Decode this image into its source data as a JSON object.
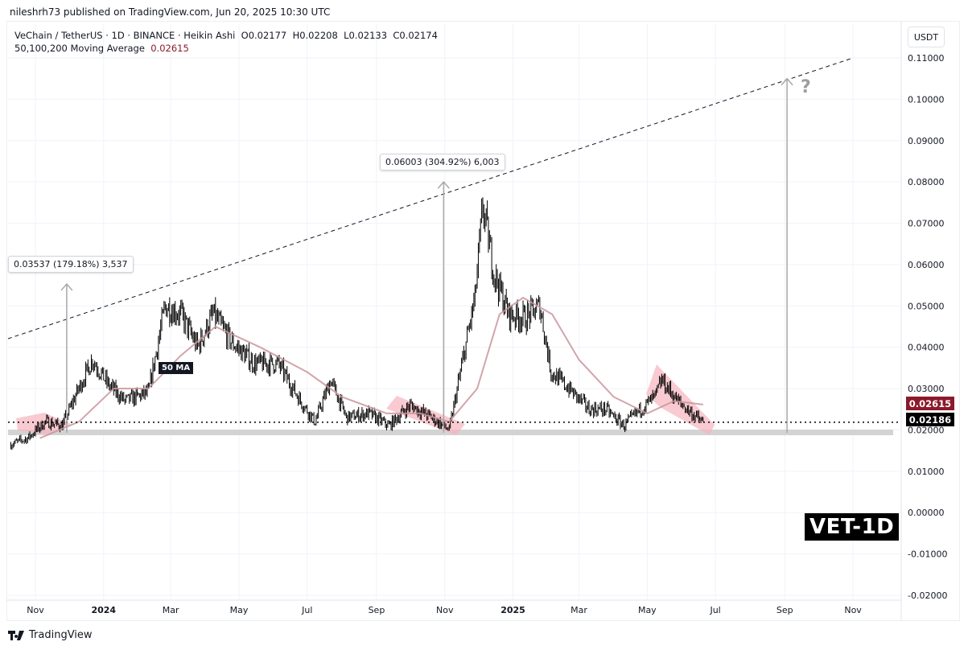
{
  "header": {
    "published": "nileshrh73 published on TradingView.com, Jun 20, 2025 10:30 UTC"
  },
  "legend": {
    "symbol": "VeChain / TetherUS · 1D · BINANCE · Heikin Ashi",
    "open": "O0.02177",
    "high": "H0.02208",
    "low": "L0.02133",
    "close": "C0.02174",
    "ma_label": "50,100,200 Moving Average",
    "ma_value": "0.02615"
  },
  "price_axis": {
    "currency": "USDT",
    "ma_tag": "0.02615",
    "price_tag": "0.02186",
    "ma_tag_color": "#8b1a2b",
    "price_tag_color": "#000000"
  },
  "annotations": {
    "left_measure": "0.03537 (179.18%) 3,537",
    "mid_measure": "0.06003 (304.92%) 6,003",
    "question": "?",
    "ma_label": "50 MA",
    "ticker_badge": "VET-1D"
  },
  "footer": {
    "brand": "TradingView"
  },
  "colors": {
    "ma": "#c9959b",
    "pattern": "#f7b3bd",
    "support": "#d3d3d3",
    "candle": "#000000"
  },
  "chart_data": {
    "type": "candlestick",
    "ylim": [
      -0.025,
      0.115
    ],
    "yticks": [
      "0.11000",
      "0.10000",
      "0.09000",
      "0.08000",
      "0.07000",
      "0.06000",
      "0.05000",
      "0.04000",
      "0.03000",
      "0.02000",
      "0.01000",
      "0.00000",
      "-0.01000",
      "-0.02000"
    ],
    "ytick_values": [
      0.11,
      0.1,
      0.09,
      0.08,
      0.07,
      0.06,
      0.05,
      0.04,
      0.03,
      0.02,
      0.01,
      0.0,
      -0.01,
      -0.02
    ],
    "xticks": [
      {
        "label": "Nov",
        "date": "2023-11-01"
      },
      {
        "label": "2024",
        "date": "2024-01-01",
        "bold": true
      },
      {
        "label": "Mar",
        "date": "2024-03-01"
      },
      {
        "label": "May",
        "date": "2024-05-01"
      },
      {
        "label": "Jul",
        "date": "2024-07-01"
      },
      {
        "label": "Sep",
        "date": "2024-09-01"
      },
      {
        "label": "Nov",
        "date": "2024-11-01"
      },
      {
        "label": "2025",
        "date": "2025-01-01",
        "bold": true
      },
      {
        "label": "Mar",
        "date": "2025-03-01"
      },
      {
        "label": "May",
        "date": "2025-05-01"
      },
      {
        "label": "Jul",
        "date": "2025-07-01"
      },
      {
        "label": "Sep",
        "date": "2025-09-01"
      },
      {
        "label": "Nov",
        "date": "2025-11-01"
      }
    ],
    "price_path": [
      [
        "2023-10-10",
        0.0165
      ],
      [
        "2023-10-25",
        0.018
      ],
      [
        "2023-11-10",
        0.022
      ],
      [
        "2023-11-25",
        0.021
      ],
      [
        "2023-12-08",
        0.029
      ],
      [
        "2023-12-22",
        0.037
      ],
      [
        "2024-01-05",
        0.031
      ],
      [
        "2024-01-20",
        0.027
      ],
      [
        "2024-02-10",
        0.029
      ],
      [
        "2024-02-25",
        0.05
      ],
      [
        "2024-03-10",
        0.048
      ],
      [
        "2024-03-25",
        0.04
      ],
      [
        "2024-04-08",
        0.048
      ],
      [
        "2024-04-25",
        0.041
      ],
      [
        "2024-05-15",
        0.036
      ],
      [
        "2024-06-05",
        0.036
      ],
      [
        "2024-06-25",
        0.027
      ],
      [
        "2024-07-08",
        0.022
      ],
      [
        "2024-07-22",
        0.032
      ],
      [
        "2024-08-05",
        0.023
      ],
      [
        "2024-08-25",
        0.024
      ],
      [
        "2024-09-12",
        0.021
      ],
      [
        "2024-10-01",
        0.026
      ],
      [
        "2024-10-20",
        0.023
      ],
      [
        "2024-11-05",
        0.02
      ],
      [
        "2024-11-15",
        0.034
      ],
      [
        "2024-11-28",
        0.052
      ],
      [
        "2024-12-05",
        0.074
      ],
      [
        "2024-12-15",
        0.058
      ],
      [
        "2024-12-28",
        0.048
      ],
      [
        "2025-01-12",
        0.047
      ],
      [
        "2025-01-25",
        0.05
      ],
      [
        "2025-02-04",
        0.034
      ],
      [
        "2025-02-20",
        0.03
      ],
      [
        "2025-03-10",
        0.025
      ],
      [
        "2025-03-25",
        0.025
      ],
      [
        "2025-04-10",
        0.021
      ],
      [
        "2025-04-25",
        0.025
      ],
      [
        "2025-05-08",
        0.028
      ],
      [
        "2025-05-14",
        0.032
      ],
      [
        "2025-05-28",
        0.027
      ],
      [
        "2025-06-10",
        0.024
      ],
      [
        "2025-06-20",
        0.0217
      ]
    ],
    "ma50_path": [
      [
        "2023-11-05",
        0.018
      ],
      [
        "2023-12-10",
        0.022
      ],
      [
        "2024-01-10",
        0.03
      ],
      [
        "2024-02-10",
        0.03
      ],
      [
        "2024-03-10",
        0.038
      ],
      [
        "2024-04-10",
        0.045
      ],
      [
        "2024-05-20",
        0.04
      ],
      [
        "2024-07-01",
        0.034
      ],
      [
        "2024-08-01",
        0.028
      ],
      [
        "2024-09-10",
        0.024
      ],
      [
        "2024-10-10",
        0.024
      ],
      [
        "2024-11-05",
        0.022
      ],
      [
        "2024-11-30",
        0.03
      ],
      [
        "2024-12-20",
        0.048
      ],
      [
        "2025-01-10",
        0.052
      ],
      [
        "2025-02-05",
        0.048
      ],
      [
        "2025-03-01",
        0.037
      ],
      [
        "2025-04-01",
        0.028
      ],
      [
        "2025-05-01",
        0.024
      ],
      [
        "2025-05-25",
        0.027
      ],
      [
        "2025-06-20",
        0.02615
      ]
    ],
    "trendline": [
      [
        "2023-10-06",
        0.042
      ],
      [
        "2025-11-01",
        0.11
      ]
    ],
    "support_level": 0.0193,
    "current_price_line": 0.02186,
    "measures": [
      {
        "date": "2023-11-29",
        "from": 0.0193,
        "to": 0.0553
      },
      {
        "date": "2024-10-31",
        "from": 0.0193,
        "to": 0.08
      },
      {
        "date": "2025-09-03",
        "from": 0.0193,
        "to": 0.105
      }
    ]
  }
}
